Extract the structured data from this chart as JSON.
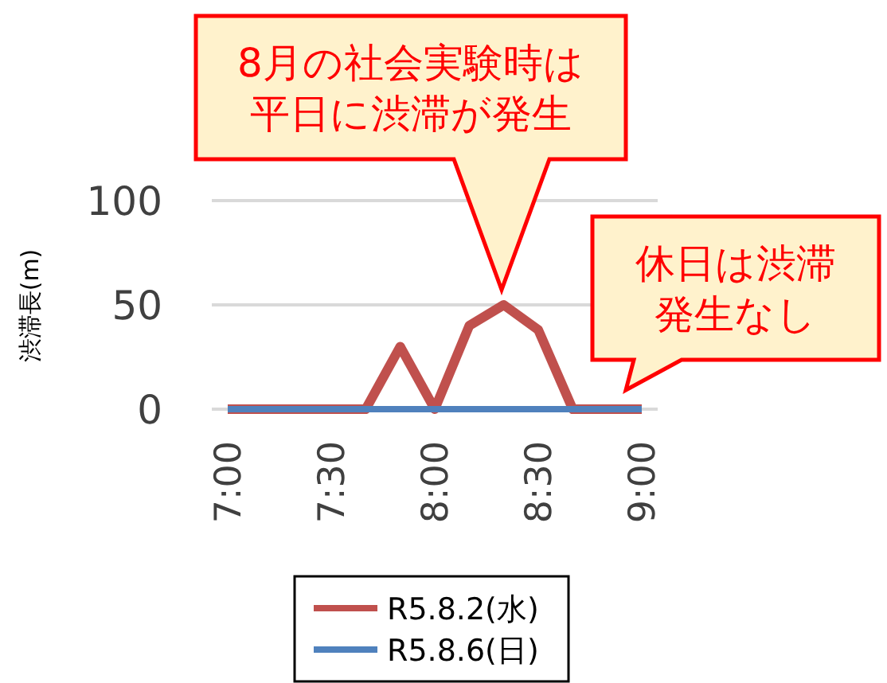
{
  "chart_data": {
    "type": "line",
    "ylabel": "渋滞長(m)",
    "categories": [
      "7:00",
      null,
      null,
      "7:30",
      null,
      null,
      "8:00",
      null,
      null,
      "8:30",
      null,
      null,
      "9:00"
    ],
    "series": [
      {
        "name": "R5.8.2(水)",
        "color": "#c0504d",
        "values": [
          0,
          0,
          0,
          0,
          0,
          30,
          0,
          40,
          50,
          38,
          0,
          0,
          0
        ]
      },
      {
        "name": "R5.8.6(日)",
        "color": "#4f81bd",
        "values": [
          0,
          0,
          0,
          0,
          0,
          0,
          0,
          0,
          0,
          0,
          0,
          0,
          0
        ]
      }
    ],
    "ylim": [
      0,
      100
    ],
    "yticks": [
      0,
      50,
      100
    ],
    "grid": "y",
    "legend": "bottom",
    "annotations": [
      "8月の社会実験時は平日に渋滞が発生",
      "休日は渋滞発生なし"
    ]
  }
}
